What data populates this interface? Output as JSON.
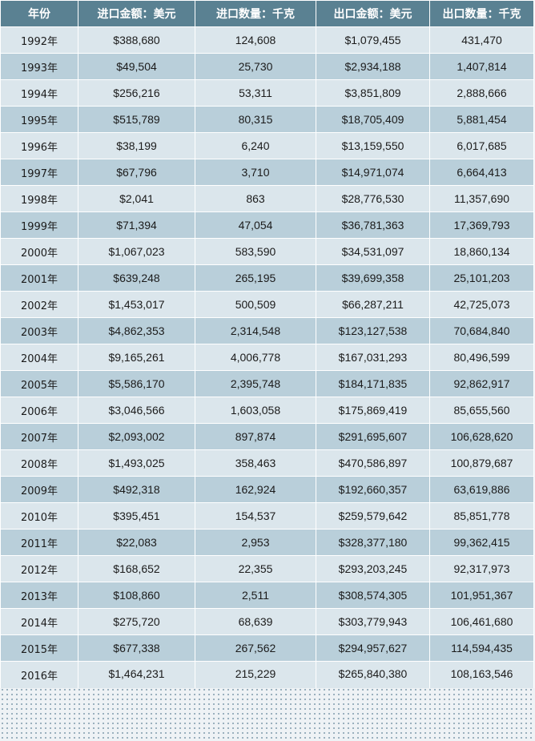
{
  "headers": [
    "年份",
    "进口金额：美元",
    "进口数量：千克",
    "出口金额：美元",
    "出口数量：千克"
  ],
  "rows": [
    [
      "1992年",
      "$388,680",
      "124,608",
      "$1,079,455",
      "431,470"
    ],
    [
      "1993年",
      "$49,504",
      "25,730",
      "$2,934,188",
      "1,407,814"
    ],
    [
      "1994年",
      "$256,216",
      "53,311",
      "$3,851,809",
      "2,888,666"
    ],
    [
      "1995年",
      "$515,789",
      "80,315",
      "$18,705,409",
      "5,881,454"
    ],
    [
      "1996年",
      "$38,199",
      "6,240",
      "$13,159,550",
      "6,017,685"
    ],
    [
      "1997年",
      "$67,796",
      "3,710",
      "$14,971,074",
      "6,664,413"
    ],
    [
      "1998年",
      "$2,041",
      "863",
      "$28,776,530",
      "11,357,690"
    ],
    [
      "1999年",
      "$71,394",
      "47,054",
      "$36,781,363",
      "17,369,793"
    ],
    [
      "2000年",
      "$1,067,023",
      "583,590",
      "$34,531,097",
      "18,860,134"
    ],
    [
      "2001年",
      "$639,248",
      "265,195",
      "$39,699,358",
      "25,101,203"
    ],
    [
      "2002年",
      "$1,453,017",
      "500,509",
      "$66,287,211",
      "42,725,073"
    ],
    [
      "2003年",
      "$4,862,353",
      "2,314,548",
      "$123,127,538",
      "70,684,840"
    ],
    [
      "2004年",
      "$9,165,261",
      "4,006,778",
      "$167,031,293",
      "80,496,599"
    ],
    [
      "2005年",
      "$5,586,170",
      "2,395,748",
      "$184,171,835",
      "92,862,917"
    ],
    [
      "2006年",
      "$3,046,566",
      "1,603,058",
      "$175,869,419",
      "85,655,560"
    ],
    [
      "2007年",
      "$2,093,002",
      "897,874",
      "$291,695,607",
      "106,628,620"
    ],
    [
      "2008年",
      "$1,493,025",
      "358,463",
      "$470,586,897",
      "100,879,687"
    ],
    [
      "2009年",
      "$492,318",
      "162,924",
      "$192,660,357",
      "63,619,886"
    ],
    [
      "2010年",
      "$395,451",
      "154,537",
      "$259,579,642",
      "85,851,778"
    ],
    [
      "2011年",
      "$22,083",
      "2,953",
      "$328,377,180",
      "99,362,415"
    ],
    [
      "2012年",
      "$168,652",
      "22,355",
      "$293,203,245",
      "92,317,973"
    ],
    [
      "2013年",
      "$108,860",
      "2,511",
      "$308,574,305",
      "101,951,367"
    ],
    [
      "2014年",
      "$275,720",
      "68,639",
      "$303,779,943",
      "106,461,680"
    ],
    [
      "2015年",
      "$677,338",
      "267,562",
      "$294,957,627",
      "114,594,435"
    ],
    [
      "2016年",
      "$1,464,231",
      "215,229",
      "$265,840,380",
      "108,163,546"
    ]
  ]
}
